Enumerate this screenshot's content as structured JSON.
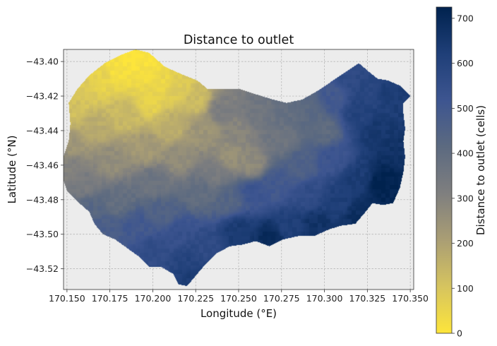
{
  "chart_data": {
    "type": "heatmap",
    "title": "Distance to outlet",
    "xlabel": "Longitude (°E)",
    "ylabel": "Latitude (°N)",
    "xlim": [
      170.148,
      170.352
    ],
    "ylim": [
      -43.532,
      -43.393
    ],
    "x_ticks": [
      {
        "value": 170.15,
        "label": "170.150"
      },
      {
        "value": 170.175,
        "label": "170.175"
      },
      {
        "value": 170.2,
        "label": "170.200"
      },
      {
        "value": 170.225,
        "label": "170.225"
      },
      {
        "value": 170.25,
        "label": "170.250"
      },
      {
        "value": 170.275,
        "label": "170.275"
      },
      {
        "value": 170.3,
        "label": "170.300"
      },
      {
        "value": 170.325,
        "label": "170.325"
      },
      {
        "value": 170.35,
        "label": "170.350"
      }
    ],
    "y_ticks": [
      {
        "value": -43.4,
        "label": "−43.40"
      },
      {
        "value": -43.42,
        "label": "−43.42"
      },
      {
        "value": -43.44,
        "label": "−43.44"
      },
      {
        "value": -43.46,
        "label": "−43.46"
      },
      {
        "value": -43.48,
        "label": "−43.48"
      },
      {
        "value": -43.5,
        "label": "−43.50"
      },
      {
        "value": -43.52,
        "label": "−43.52"
      }
    ],
    "grid": true,
    "colormap": "cividis_r",
    "colorbar": {
      "label": "Distance to outlet (cells)",
      "min": 0,
      "max": 725,
      "ticks": [
        {
          "value": 0,
          "label": "0"
        },
        {
          "value": 100,
          "label": "100"
        },
        {
          "value": 200,
          "label": "200"
        },
        {
          "value": 300,
          "label": "300"
        },
        {
          "value": 400,
          "label": "400"
        },
        {
          "value": 500,
          "label": "500"
        },
        {
          "value": 600,
          "label": "600"
        },
        {
          "value": 700,
          "label": "700"
        }
      ]
    },
    "colors": [
      "#fde53b",
      "#d6c45f",
      "#aa9e74",
      "#7f7f7f",
      "#5c6a80",
      "#3d5590",
      "#1f3f78",
      "#00224e"
    ],
    "basin_outline": [
      [
        170.148,
        -43.455
      ],
      [
        170.151,
        -43.446
      ],
      [
        170.152,
        -43.436
      ],
      [
        170.151,
        -43.424
      ],
      [
        170.156,
        -43.416
      ],
      [
        170.163,
        -43.408
      ],
      [
        170.172,
        -43.401
      ],
      [
        170.182,
        -43.396
      ],
      [
        170.19,
        -43.393
      ],
      [
        170.198,
        -43.395
      ],
      [
        170.207,
        -43.403
      ],
      [
        170.216,
        -43.407
      ],
      [
        170.226,
        -43.411
      ],
      [
        170.232,
        -43.416
      ],
      [
        170.241,
        -43.416
      ],
      [
        170.251,
        -43.416
      ],
      [
        170.26,
        -43.419
      ],
      [
        170.27,
        -43.422
      ],
      [
        170.278,
        -43.424
      ],
      [
        170.287,
        -43.422
      ],
      [
        170.296,
        -43.417
      ],
      [
        170.305,
        -43.411
      ],
      [
        170.314,
        -43.405
      ],
      [
        170.32,
        -43.401
      ],
      [
        170.326,
        -43.406
      ],
      [
        170.331,
        -43.41
      ],
      [
        170.337,
        -43.411
      ],
      [
        170.344,
        -43.414
      ],
      [
        170.35,
        -43.42
      ],
      [
        170.346,
        -43.424
      ],
      [
        170.346,
        -43.43
      ],
      [
        170.347,
        -43.439
      ],
      [
        170.346,
        -43.446
      ],
      [
        170.347,
        -43.455
      ],
      [
        170.346,
        -43.464
      ],
      [
        170.344,
        -43.473
      ],
      [
        170.34,
        -43.482
      ],
      [
        170.334,
        -43.483
      ],
      [
        170.328,
        -43.482
      ],
      [
        170.324,
        -43.487
      ],
      [
        170.318,
        -43.494
      ],
      [
        170.31,
        -43.495
      ],
      [
        170.303,
        -43.497
      ],
      [
        170.294,
        -43.501
      ],
      [
        170.285,
        -43.501
      ],
      [
        170.276,
        -43.503
      ],
      [
        170.268,
        -43.507
      ],
      [
        170.26,
        -43.504
      ],
      [
        170.252,
        -43.506
      ],
      [
        170.245,
        -43.507
      ],
      [
        170.237,
        -43.511
      ],
      [
        170.231,
        -43.517
      ],
      [
        170.225,
        -43.524
      ],
      [
        170.22,
        -43.53
      ],
      [
        170.215,
        -43.529
      ],
      [
        170.212,
        -43.523
      ],
      [
        170.205,
        -43.519
      ],
      [
        170.198,
        -43.519
      ],
      [
        170.192,
        -43.513
      ],
      [
        170.185,
        -43.508
      ],
      [
        170.178,
        -43.503
      ],
      [
        170.171,
        -43.5
      ],
      [
        170.166,
        -43.494
      ],
      [
        170.163,
        -43.487
      ],
      [
        170.156,
        -43.481
      ],
      [
        170.15,
        -43.475
      ],
      [
        170.147,
        -43.466
      ]
    ],
    "field_points": [
      [
        170.189,
        -43.398,
        0
      ],
      [
        170.196,
        -43.405,
        15
      ],
      [
        170.205,
        -43.412,
        45
      ],
      [
        170.18,
        -43.405,
        20
      ],
      [
        170.17,
        -43.41,
        55
      ],
      [
        170.16,
        -43.418,
        90
      ],
      [
        170.155,
        -43.428,
        115
      ],
      [
        170.215,
        -43.415,
        85
      ],
      [
        170.198,
        -43.423,
        60
      ],
      [
        170.225,
        -43.422,
        130
      ],
      [
        170.23,
        -43.44,
        240
      ],
      [
        170.21,
        -43.438,
        165
      ],
      [
        170.185,
        -43.43,
        135
      ],
      [
        170.165,
        -43.437,
        170
      ],
      [
        170.152,
        -43.448,
        235
      ],
      [
        170.15,
        -43.46,
        300
      ],
      [
        170.16,
        -43.47,
        330
      ],
      [
        170.175,
        -43.458,
        265
      ],
      [
        170.195,
        -43.45,
        225
      ],
      [
        170.215,
        -43.455,
        265
      ],
      [
        170.24,
        -43.428,
        320
      ],
      [
        170.25,
        -43.44,
        290
      ],
      [
        170.245,
        -43.455,
        255
      ],
      [
        170.258,
        -43.46,
        270
      ],
      [
        170.262,
        -43.43,
        355
      ],
      [
        170.278,
        -43.428,
        395
      ],
      [
        170.29,
        -43.425,
        420
      ],
      [
        170.275,
        -43.445,
        360
      ],
      [
        170.3,
        -43.44,
        405
      ],
      [
        170.305,
        -43.42,
        500
      ],
      [
        170.315,
        -43.41,
        570
      ],
      [
        170.325,
        -43.415,
        590
      ],
      [
        170.34,
        -43.418,
        630
      ],
      [
        170.33,
        -43.44,
        645
      ],
      [
        170.32,
        -43.43,
        605
      ],
      [
        170.34,
        -43.45,
        665
      ],
      [
        170.333,
        -43.47,
        725
      ],
      [
        170.34,
        -43.478,
        715
      ],
      [
        170.32,
        -43.468,
        630
      ],
      [
        170.305,
        -43.455,
        520
      ],
      [
        170.285,
        -43.46,
        455
      ],
      [
        170.27,
        -43.47,
        500
      ],
      [
        170.29,
        -43.478,
        560
      ],
      [
        170.308,
        -43.482,
        620
      ],
      [
        170.318,
        -43.49,
        680
      ],
      [
        170.295,
        -43.494,
        665
      ],
      [
        170.28,
        -43.496,
        615
      ],
      [
        170.268,
        -43.502,
        690
      ],
      [
        170.25,
        -43.498,
        640
      ],
      [
        170.245,
        -43.48,
        440
      ],
      [
        170.228,
        -43.475,
        395
      ],
      [
        170.235,
        -43.465,
        335
      ],
      [
        170.2,
        -43.47,
        365
      ],
      [
        170.18,
        -43.48,
        390
      ],
      [
        170.165,
        -43.485,
        430
      ],
      [
        170.17,
        -43.496,
        470
      ],
      [
        170.19,
        -43.495,
        500
      ],
      [
        170.205,
        -43.487,
        450
      ],
      [
        170.215,
        -43.5,
        540
      ],
      [
        170.2,
        -43.51,
        560
      ],
      [
        170.22,
        -43.515,
        600
      ],
      [
        170.225,
        -43.525,
        640
      ],
      [
        170.23,
        -43.508,
        570
      ],
      [
        170.258,
        -43.475,
        520
      ]
    ]
  }
}
